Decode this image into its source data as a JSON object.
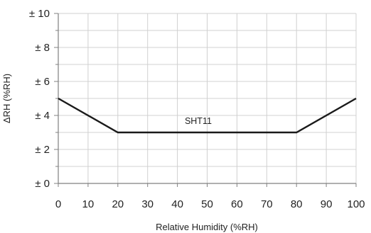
{
  "chart_data": {
    "type": "line",
    "title": "",
    "xlabel": "Relative Humidity (%RH)",
    "ylabel": "ΔRH (%RH)",
    "xlim": [
      0,
      100
    ],
    "ylim": [
      0,
      10
    ],
    "x_ticks": [
      0,
      10,
      20,
      30,
      40,
      50,
      60,
      70,
      80,
      90,
      100
    ],
    "x_tick_labels": [
      "0",
      "10",
      "20",
      "30",
      "40",
      "50",
      "60",
      "70",
      "80",
      "90",
      "100"
    ],
    "y_ticks": [
      0,
      2,
      4,
      6,
      8,
      10
    ],
    "y_tick_labels": [
      "± 0",
      "± 2",
      "± 4",
      "± 6",
      "± 8",
      "± 10"
    ],
    "y_minor_ticks": [
      1,
      3,
      5,
      7,
      9
    ],
    "grid": true,
    "series": [
      {
        "name": "SHT11",
        "x": [
          0,
          20,
          80,
          100
        ],
        "y": [
          5,
          3,
          3,
          5
        ],
        "color": "#1a1a1a",
        "label_at": {
          "x": 47,
          "y": 3.5
        }
      }
    ]
  }
}
